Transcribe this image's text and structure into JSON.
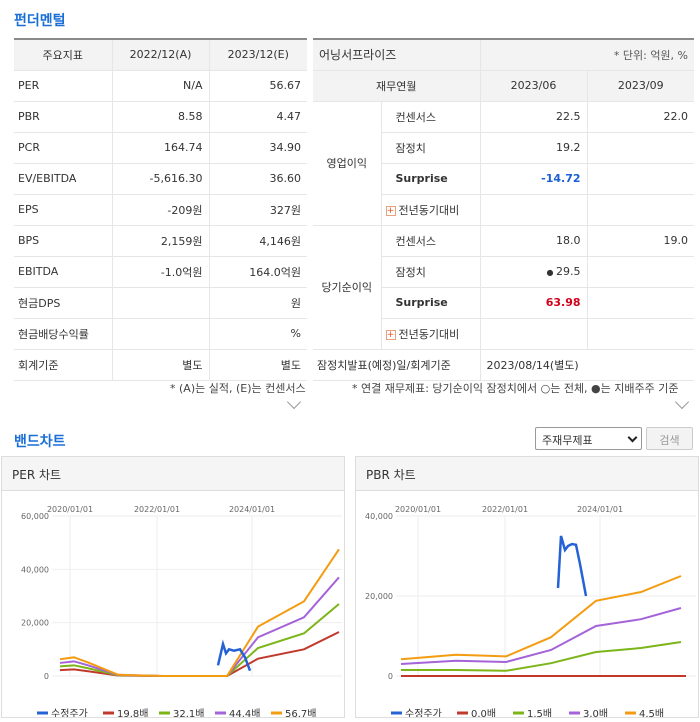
{
  "fundamentals": {
    "title": "펀더멘털"
  },
  "left_table": {
    "headers": [
      "주요지표",
      "2022/12(A)",
      "2023/12(E)"
    ],
    "rows": [
      [
        "PER",
        "N/A",
        "56.67"
      ],
      [
        "PBR",
        "8.58",
        "4.47"
      ],
      [
        "PCR",
        "164.74",
        "34.90"
      ],
      [
        "EV/EBITDA",
        "-5,616.30",
        "36.60"
      ],
      [
        "EPS",
        "-209원",
        "327원"
      ],
      [
        "BPS",
        "2,159원",
        "4,146원"
      ],
      [
        "EBITDA",
        "-1.0억원",
        "164.0억원"
      ],
      [
        "현금DPS",
        "",
        "원"
      ],
      [
        "현금배당수익률",
        "",
        "%"
      ],
      [
        "회계기준",
        "별도",
        "별도"
      ]
    ],
    "note": "* (A)는 실적, (E)는 컨센서스"
  },
  "right_table": {
    "company": "어닝서프라이즈",
    "unit": "* 단위: 억원, %",
    "headers": [
      "재무연월",
      "2023/06",
      "2023/09"
    ],
    "groups": [
      {
        "name": "영업이익",
        "rows": [
          {
            "label": "컨센서스",
            "v1": "22.5",
            "v2": "22.0"
          },
          {
            "label": "잠정치",
            "v1": "19.2",
            "v2": ""
          },
          {
            "label": "Surprise",
            "v1": "-14.72",
            "v2": ""
          },
          {
            "label": "전년동기대비",
            "v1": "",
            "v2": ""
          }
        ]
      },
      {
        "name": "당기순이익",
        "rows": [
          {
            "label": "컨센서스",
            "v1": "18.0",
            "v2": "19.0"
          },
          {
            "label": "잠정치",
            "v1": "29.5",
            "v2": ""
          },
          {
            "label": "Surprise",
            "v1": "63.98",
            "v2": ""
          },
          {
            "label": "전년동기대비",
            "v1": "",
            "v2": ""
          }
        ]
      }
    ],
    "footer_label": "잠정치발표(예정)일/회계기준",
    "footer_value": "2023/08/14(별도)",
    "note": "* 연결 재무제표: 당기순이익 잠정치에서 ○는 전체, ●는 지배주주 기준"
  },
  "band": {
    "title": "밴드차트",
    "select_value": "주재무제표",
    "search_label": "검색"
  },
  "chart_data": [
    {
      "type": "line",
      "title": "PER 차트",
      "x_ticks": [
        "2020/01/01",
        "2022/01/01",
        "2024/01/01"
      ],
      "y_ticks": [
        "0",
        "20,000",
        "40,000",
        "60,000"
      ],
      "ylim": [
        0,
        60000
      ],
      "x": [
        "2019/12",
        "2020/06",
        "2020/12",
        "2021/06",
        "2021/12",
        "2022/06",
        "2022/12",
        "2023/03",
        "2023/06",
        "2023/09",
        "2024/03",
        "2024/12",
        "2025/06"
      ],
      "series": [
        {
          "name": "19.8배",
          "color": "#c0392b",
          "values": [
            2200,
            2500,
            1800,
            200,
            0,
            0,
            0,
            0,
            0,
            6500,
            10000,
            16500,
            null
          ]
        },
        {
          "name": "32.1배",
          "color": "#7cb518",
          "values": [
            3600,
            4000,
            2900,
            300,
            0,
            0,
            0,
            0,
            0,
            10500,
            16000,
            27000,
            null
          ]
        },
        {
          "name": "44.4배",
          "color": "#a463d8",
          "values": [
            4900,
            5500,
            4000,
            400,
            0,
            0,
            0,
            0,
            0,
            14500,
            22000,
            37000,
            null
          ]
        },
        {
          "name": "56.7배",
          "color": "#f39c12",
          "values": [
            6300,
            7000,
            5100,
            500,
            0,
            0,
            0,
            0,
            0,
            18500,
            28000,
            47500,
            null
          ]
        }
      ],
      "price": {
        "name": "수정주가",
        "color": "#2462d6"
      }
    },
    {
      "type": "line",
      "title": "PBR 차트",
      "x_ticks": [
        "2020/01/01",
        "2022/01/01",
        "2024/01/01"
      ],
      "y_ticks": [
        "0",
        "20,000",
        "40,000"
      ],
      "ylim": [
        0,
        40000
      ],
      "series": [
        {
          "name": "0.0배",
          "color": "#c0392b"
        },
        {
          "name": "1.5배",
          "color": "#7cb518"
        },
        {
          "name": "3.0배",
          "color": "#a463d8"
        },
        {
          "name": "4.5배",
          "color": "#f39c12"
        }
      ],
      "price": {
        "name": "수정주가",
        "color": "#2462d6"
      }
    }
  ]
}
